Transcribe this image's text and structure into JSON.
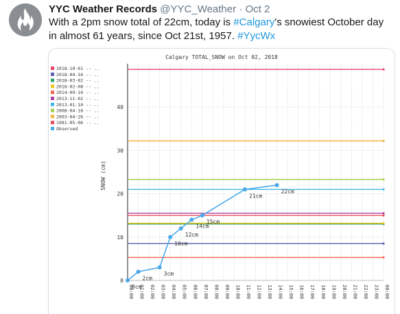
{
  "tweet": {
    "display_name": "YYC Weather Records",
    "handle": "@YYC_Weather",
    "separator": "·",
    "date": "Oct 2",
    "text_part1": "With a 2pm snow total of 22cm, today is ",
    "hashtag1": "#Calgary",
    "text_part2": "'s snowiest October day in almost 61 years, since Oct 21st, 1957. ",
    "hashtag2": "#YycWx"
  },
  "chart_data": {
    "type": "line",
    "title": "Calgary TOTAL_SNOW on Oct 02, 2018",
    "xlabel": "",
    "ylabel": "SNOW (cm)",
    "ylim": [
      0,
      50
    ],
    "yticks": [
      0,
      10,
      20,
      30,
      40
    ],
    "x_ticks": [
      "00:00",
      "01:00",
      "02:00",
      "03:00",
      "04:00",
      "05:00",
      "06:00",
      "07:00",
      "08:00",
      "09:00",
      "10:00",
      "11:00",
      "12:00",
      "13:00",
      "14:00",
      "15:00",
      "16:00",
      "17:00",
      "18:00",
      "19:00",
      "20:00",
      "21:00",
      "22:00",
      "23:00",
      "00:00"
    ],
    "grid": true,
    "legend_position": "left",
    "reference_series": [
      {
        "name": "2018-10-01 -- ..",
        "value": 48.7,
        "color": "#e8436c"
      },
      {
        "name": "2018-04-16 -- ..",
        "value": 8.5,
        "color": "#5a5fb0"
      },
      {
        "name": "2018-03-02 -- ..",
        "value": 13.0,
        "color": "#34a66d"
      },
      {
        "name": "2018-02-08 -- ..",
        "value": 13.2,
        "color": "#f0c419"
      },
      {
        "name": "2014-09-10 -- ..",
        "value": 5.3,
        "color": "#f2664f"
      },
      {
        "name": "2013-11-02 -- ..",
        "value": 15.5,
        "color": "#b040a8"
      },
      {
        "name": "2013-01-10 -- ..",
        "value": 21.0,
        "color": "#42b8e8"
      },
      {
        "name": "2008-04-18 -- ..",
        "value": 23.3,
        "color": "#a5cf4c"
      },
      {
        "name": "2003-04-26 -- ..",
        "value": 32.2,
        "color": "#f4b33f"
      },
      {
        "name": "1981-05-06 -- ..",
        "value": 15.0,
        "color": "#ec4d5a"
      }
    ],
    "observed": {
      "name": "Observed",
      "color": "#4aa9e9",
      "points": [
        {
          "x": "00:00",
          "y": 0,
          "label": "0cm"
        },
        {
          "x": "01:00",
          "y": 2,
          "label": "2cm"
        },
        {
          "x": "03:00",
          "y": 3,
          "label": "3cm"
        },
        {
          "x": "04:00",
          "y": 10,
          "label": "10cm"
        },
        {
          "x": "05:00",
          "y": 12,
          "label": "12cm"
        },
        {
          "x": "06:00",
          "y": 14,
          "label": "14cm"
        },
        {
          "x": "07:00",
          "y": 15,
          "label": "15cm"
        },
        {
          "x": "11:00",
          "y": 21,
          "label": "21cm"
        },
        {
          "x": "14:00",
          "y": 22,
          "label": "22cm"
        }
      ]
    }
  }
}
